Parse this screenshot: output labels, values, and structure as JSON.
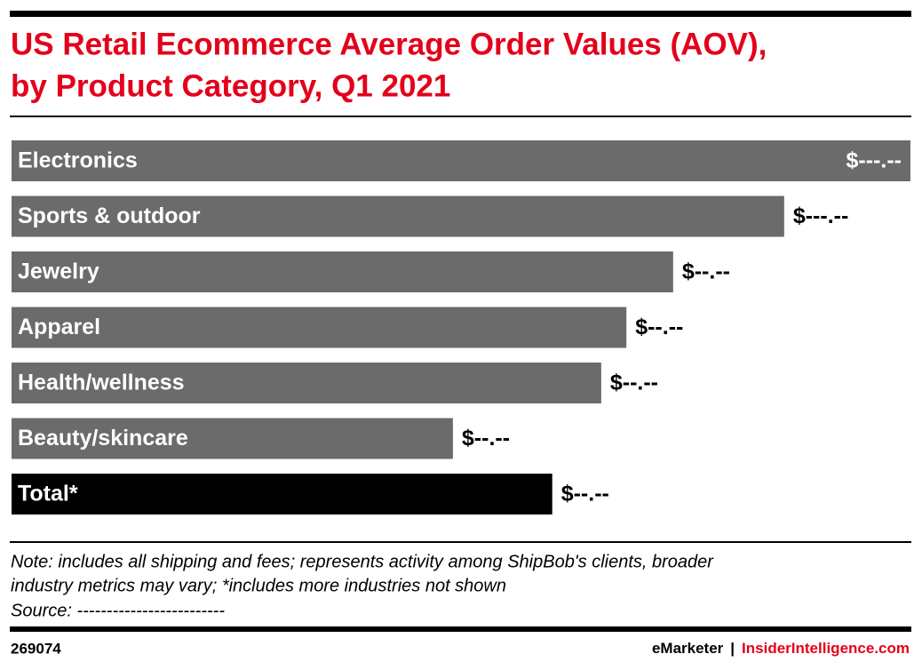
{
  "chart_data": {
    "type": "bar",
    "orientation": "horizontal",
    "title": [
      "US Retail Ecommerce Average Order Values (AOV),",
      "by Product Category, Q1 2021"
    ],
    "categories": [
      "Electronics",
      "Sports & outdoor",
      "Jewelry",
      "Apparel",
      "Health/wellness",
      "Beauty/skincare",
      "Total*"
    ],
    "values": [
      200,
      171.9,
      147.2,
      136.8,
      131.2,
      98.2,
      120.3
    ],
    "value_labels": [
      "$---.--",
      "$---.--",
      "$--.--",
      "$--.--",
      "$--.--",
      "$--.--",
      "$--.--"
    ],
    "colors": [
      "#6b6b6b",
      "#6b6b6b",
      "#6b6b6b",
      "#6b6b6b",
      "#6b6b6b",
      "#6b6b6b",
      "#000000"
    ],
    "note": [
      "Note: includes all shipping and fees; represents activity among ShipBob's clients, broader",
      "industry metrics may vary; *includes more industries not shown",
      "Source: -------------------------"
    ],
    "footer": {
      "id": "269074",
      "left": "eMarketer",
      "divider": "|",
      "right": "InsiderIntelligence.com"
    }
  }
}
